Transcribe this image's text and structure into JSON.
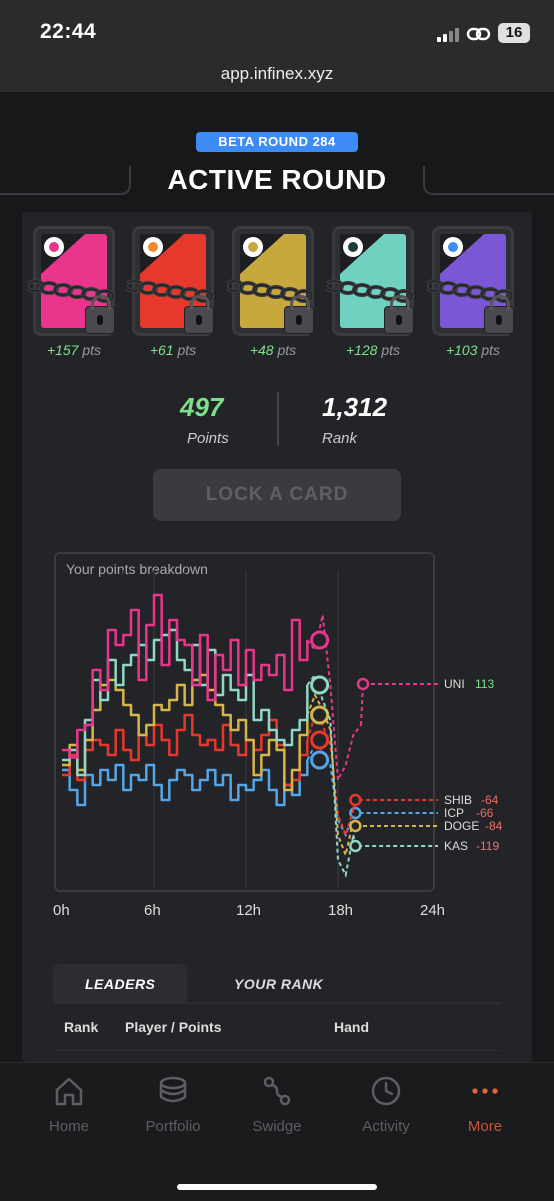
{
  "status_bar": {
    "time": "22:44",
    "battery": "16"
  },
  "browser": {
    "url": "app.infinex.xyz"
  },
  "round": {
    "badge": "BETA ROUND 284",
    "title": "ACTIVE ROUND"
  },
  "cards": [
    {
      "pts": "+157",
      "color": "#e9358c",
      "badge_color": "#e9358c"
    },
    {
      "pts": "+61",
      "color": "#e7382e",
      "badge_color": "#f08a2b"
    },
    {
      "pts": "+48",
      "color": "#c6a83c",
      "badge_color": "#c6a83c"
    },
    {
      "pts": "+128",
      "color": "#6fd2c0",
      "badge_color": "#1b3d3a"
    },
    {
      "pts": "+103",
      "color": "#7b57d6",
      "badge_color": "#3d8cf5"
    }
  ],
  "pts_unit": "pts",
  "stats": {
    "points_value": "497",
    "points_label": "Points",
    "rank_value": "1,312",
    "rank_label": "Rank"
  },
  "lock_button": "LOCK A CARD",
  "chart_data": {
    "type": "line",
    "title": "Your points breakdown",
    "x_ticks": [
      "0h",
      "6h",
      "12h",
      "18h",
      "24h"
    ],
    "xlim": [
      0,
      24
    ],
    "series": [
      {
        "name": "UNI",
        "value": "113",
        "color": "#e9358c",
        "value_color": "#7ee08a",
        "x": [
          0,
          0.5,
          1,
          1.5,
          2,
          2.5,
          3,
          3.5,
          4,
          4.5,
          5,
          5.5,
          6,
          6.5,
          7,
          7.5,
          8,
          8.5,
          9,
          9.5,
          10,
          10.5,
          11,
          11.5,
          12,
          12.5,
          13,
          13.5,
          14,
          14.5,
          15,
          15.5,
          16,
          16.5,
          17,
          17.5,
          18,
          18.5,
          19,
          19.5
        ],
        "y": [
          20,
          5,
          60,
          70,
          180,
          140,
          260,
          230,
          250,
          300,
          160,
          270,
          330,
          190,
          280,
          240,
          230,
          150,
          250,
          120,
          210,
          180,
          240,
          150,
          220,
          160,
          190,
          170,
          210,
          140,
          280,
          200,
          240,
          220,
          290,
          150,
          -40,
          -10,
          50,
          70
        ]
      },
      {
        "name": "KAS",
        "value": "-119",
        "color": "#8fd8c8",
        "value_color": "#f06b6b",
        "x": [
          0,
          0.5,
          1,
          1.5,
          2,
          2.5,
          3,
          3.5,
          4,
          4.5,
          5,
          5.5,
          6,
          6.5,
          7,
          7.5,
          8,
          8.5,
          9,
          9.5,
          10,
          10.5,
          11,
          11.5,
          12,
          12.5,
          13,
          13.5,
          14,
          14.5,
          15,
          15.5,
          16,
          16.5,
          17,
          17.5,
          18,
          18.5,
          19
        ],
        "y": [
          0,
          20,
          -30,
          80,
          160,
          120,
          200,
          150,
          190,
          210,
          230,
          200,
          240,
          250,
          260,
          200,
          180,
          230,
          150,
          220,
          130,
          170,
          140,
          120,
          170,
          80,
          100,
          60,
          40,
          30,
          60,
          80,
          150,
          170,
          120,
          80,
          -200,
          -230,
          -150
        ]
      },
      {
        "name": "DOGE",
        "value": "-84",
        "color": "#d6b64a",
        "value_color": "#f06b6b",
        "x": [
          0,
          0.5,
          1,
          1.5,
          2,
          2.5,
          3,
          3.5,
          4,
          4.5,
          5,
          5.5,
          6,
          6.5,
          7,
          7.5,
          8,
          8.5,
          9,
          9.5,
          10,
          10.5,
          11,
          11.5,
          12,
          12.5,
          13,
          13.5,
          14,
          14.5,
          15,
          15.5,
          16,
          16.5,
          17,
          17.5,
          18,
          18.5,
          19
        ],
        "y": [
          -10,
          30,
          -20,
          40,
          100,
          150,
          160,
          140,
          110,
          90,
          50,
          70,
          110,
          100,
          120,
          150,
          110,
          160,
          170,
          140,
          110,
          90,
          60,
          80,
          40,
          -30,
          10,
          40,
          20,
          -60,
          -20,
          50,
          90,
          130,
          100,
          60,
          -150,
          -190,
          -120
        ]
      },
      {
        "name": "SHIB",
        "value": "-64",
        "color": "#e7382e",
        "value_color": "#f06b6b",
        "x": [
          0,
          0.5,
          1,
          1.5,
          2,
          2.5,
          3,
          3.5,
          4,
          4.5,
          5,
          5.5,
          6,
          6.5,
          7,
          7.5,
          8,
          8.5,
          9,
          9.5,
          10,
          10.5,
          11,
          11.5,
          12,
          12.5,
          13,
          13.5,
          14,
          14.5,
          15,
          15.5,
          16,
          16.5,
          17,
          17.5,
          18,
          18.5,
          19
        ],
        "y": [
          -30,
          10,
          -40,
          20,
          40,
          30,
          10,
          60,
          20,
          0,
          50,
          30,
          70,
          40,
          10,
          60,
          90,
          50,
          30,
          40,
          20,
          70,
          30,
          10,
          40,
          20,
          50,
          80,
          30,
          -50,
          -40,
          10,
          40,
          90,
          70,
          30,
          -110,
          -150,
          -100
        ]
      },
      {
        "name": "ICP",
        "value": "-66",
        "color": "#55a6e6",
        "value_color": "#f06b6b",
        "x": [
          0,
          0.5,
          1,
          1.5,
          2,
          2.5,
          3,
          3.5,
          4,
          4.5,
          5,
          5.5,
          6,
          6.5,
          7,
          7.5,
          8,
          8.5,
          9,
          9.5,
          10,
          10.5,
          11,
          11.5,
          12,
          12.5,
          13,
          13.5,
          14,
          14.5,
          15,
          15.5,
          16,
          16.5,
          17,
          17.5,
          18,
          18.5,
          19
        ],
        "y": [
          -20,
          -60,
          -90,
          -30,
          -50,
          -20,
          -40,
          -10,
          -60,
          -30,
          -40,
          -10,
          -50,
          -80,
          -40,
          -20,
          -30,
          -60,
          -40,
          -20,
          -50,
          -30,
          -80,
          -50,
          -60,
          -40,
          -20,
          -60,
          -90,
          -50,
          -70,
          -30,
          0,
          30,
          20,
          -10,
          -120,
          -150,
          -110
        ]
      }
    ]
  },
  "tabs": {
    "leaders": "LEADERS",
    "your_rank": "YOUR RANK"
  },
  "table": {
    "rank": "Rank",
    "player": "Player / Points",
    "hand": "Hand"
  },
  "nav": [
    {
      "label": "Home",
      "icon": "home-icon"
    },
    {
      "label": "Portfolio",
      "icon": "portfolio-icon"
    },
    {
      "label": "Swidge",
      "icon": "swidge-icon"
    },
    {
      "label": "Activity",
      "icon": "activity-icon"
    },
    {
      "label": "More",
      "icon": "more-icon"
    }
  ],
  "colors": {
    "accent": "#3d8cf5",
    "positive": "#7ee08a",
    "negative": "#f06b6b",
    "more": "#e8643a"
  }
}
